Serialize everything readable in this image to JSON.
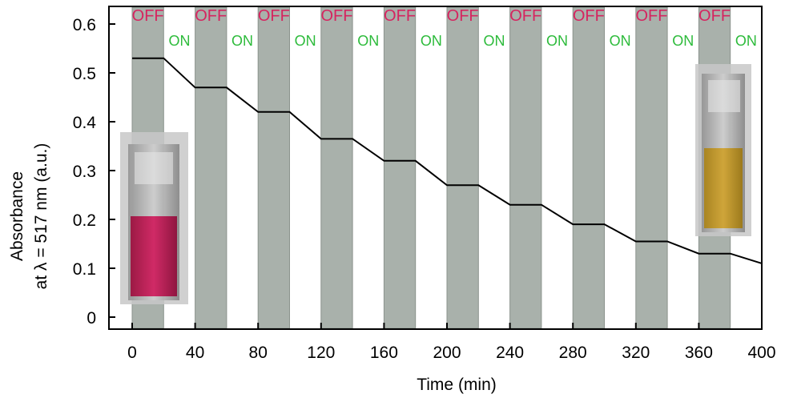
{
  "chart_data": {
    "type": "line",
    "xlabel": "Time (min)",
    "ylabel": "Absorbance",
    "ylabel_line2": "at λ = 517 nm (a.u.)",
    "xlim": [
      0,
      400
    ],
    "ylim": [
      0,
      0.65
    ],
    "x_ticks": [
      "0",
      "40",
      "80",
      "120",
      "160",
      "200",
      "240",
      "280",
      "320",
      "360",
      "400"
    ],
    "y_ticks": [
      "0",
      "0.1",
      "0.2",
      "0.3",
      "0.4",
      "0.5",
      "0.6"
    ],
    "x_tick_values": [
      0,
      40,
      80,
      120,
      160,
      200,
      240,
      280,
      320,
      360,
      400
    ],
    "y_tick_values": [
      0,
      0.1,
      0.2,
      0.3,
      0.4,
      0.5,
      0.6
    ],
    "light_states": {
      "off_label": "OFF",
      "on_label": "ON",
      "off_intervals": [
        [
          0,
          20
        ],
        [
          40,
          60
        ],
        [
          80,
          100
        ],
        [
          120,
          140
        ],
        [
          160,
          180
        ],
        [
          200,
          220
        ],
        [
          240,
          260
        ],
        [
          280,
          300
        ],
        [
          320,
          340
        ],
        [
          360,
          380
        ]
      ],
      "on_label_x": [
        30,
        70,
        110,
        150,
        190,
        230,
        270,
        310,
        350,
        390
      ]
    },
    "series": [
      {
        "x": [
          0,
          20,
          40,
          60,
          80,
          100,
          120,
          140,
          160,
          180,
          200,
          220,
          240,
          260,
          280,
          300,
          320,
          340,
          360,
          380,
          400
        ],
        "y": [
          0.53,
          0.53,
          0.47,
          0.47,
          0.42,
          0.42,
          0.365,
          0.365,
          0.32,
          0.32,
          0.27,
          0.27,
          0.23,
          0.23,
          0.19,
          0.19,
          0.155,
          0.155,
          0.13,
          0.13,
          0.11
        ]
      }
    ],
    "grid": false
  },
  "colors": {
    "off_band": "#a9b1ab",
    "off_text": "#d6245f",
    "on_text": "#2dbb3b",
    "line": "#000000",
    "axis": "#000000"
  }
}
